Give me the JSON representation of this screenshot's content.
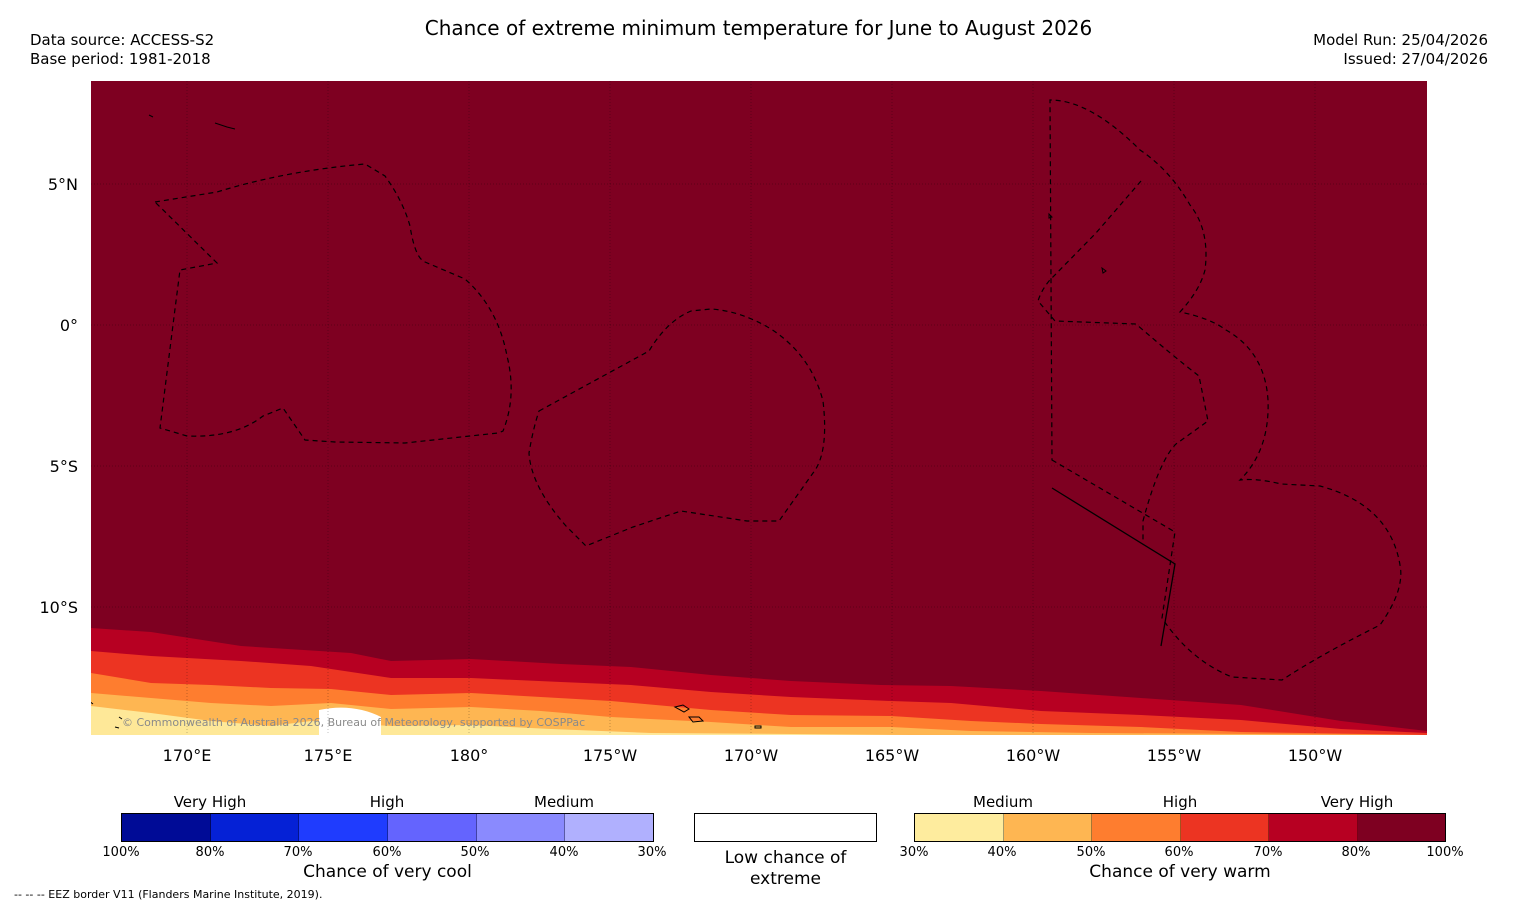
{
  "header": {
    "title": "Chance of extreme minimum temperature for June to August 2026",
    "data_source": "Data source: ACCESS-S2",
    "base_period": "Base period: 1981-2018",
    "model_run": "Model Run: 25/04/2026",
    "issued": "Issued: 27/04/2026"
  },
  "map": {
    "latitude_labels": [
      "5°N",
      "0°",
      "5°S",
      "10°S"
    ],
    "longitude_labels": [
      "170°E",
      "175°E",
      "180°",
      "175°W",
      "170°W",
      "165°W",
      "160°W",
      "155°W",
      "150°W"
    ],
    "copyright": "© Commonwealth of Australia 2026, Bureau of Meteorology, supported by COSPPac",
    "colors": {
      "very_high_warm": "#7e0021",
      "band_70_80": "#b70022",
      "band_60_70": "#ec3422",
      "band_50_60": "#fe7d2f",
      "band_40_50": "#feb652",
      "band_30_40": "#fee898"
    }
  },
  "legend": {
    "cool": {
      "levels": [
        "Very High",
        "High",
        "Medium"
      ],
      "ticks": [
        "100%",
        "80%",
        "70%",
        "60%",
        "50%",
        "40%",
        "30%"
      ],
      "title": "Chance of very cool",
      "colors": [
        "#000b96",
        "#0521d6",
        "#1f3cfe",
        "#6464fe",
        "#8a8afe",
        "#b0b0fe"
      ]
    },
    "low": {
      "label": "Low chance of extreme"
    },
    "warm": {
      "levels": [
        "Medium",
        "High",
        "Very High"
      ],
      "ticks": [
        "30%",
        "40%",
        "50%",
        "60%",
        "70%",
        "80%",
        "100%"
      ],
      "title": "Chance of very warm",
      "colors": [
        "#feec9e",
        "#feb652",
        "#fe7d2f",
        "#ec3422",
        "#b70022",
        "#7e0021"
      ]
    }
  },
  "footer": {
    "eez_note": "--  --  -- EEZ border V11 (Flanders Marine Institute, 2019)."
  }
}
